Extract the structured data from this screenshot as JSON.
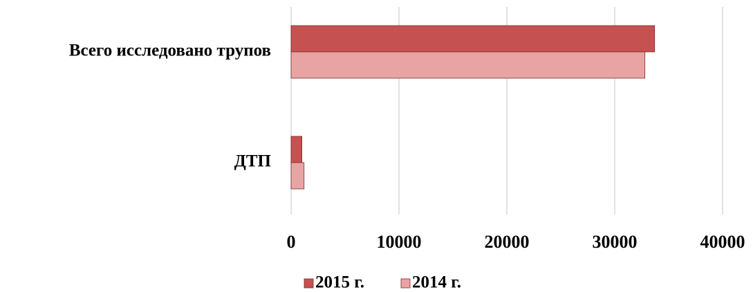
{
  "chart_data": {
    "type": "bar",
    "orientation": "horizontal",
    "categories": [
      "Всего исследовано трупов",
      "ДТП"
    ],
    "series": [
      {
        "name": "2015 г.",
        "color": "#c55150",
        "values": [
          33700,
          1000
        ]
      },
      {
        "name": "2014 г.",
        "color": "#e8a4a3",
        "values": [
          32800,
          1200
        ]
      }
    ],
    "xlim": [
      0,
      40000
    ],
    "xticks": [
      0,
      10000,
      20000,
      30000,
      40000
    ],
    "grid": true,
    "legend": "bottom"
  }
}
